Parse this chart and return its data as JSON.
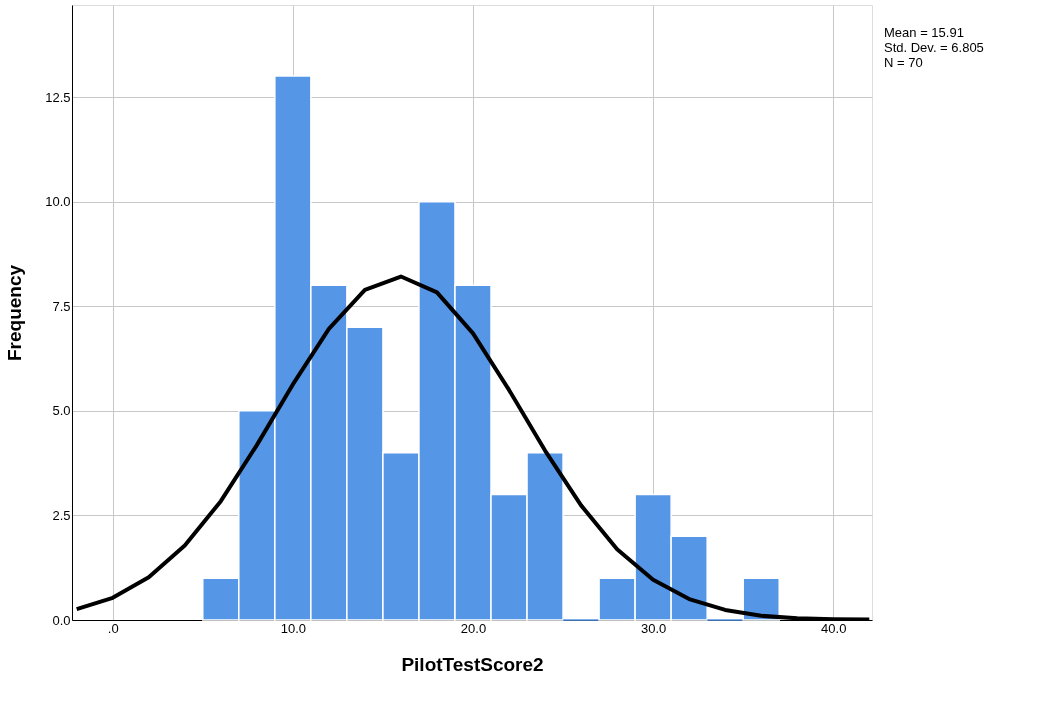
{
  "chart_data": {
    "type": "histogram",
    "xlabel": "PilotTestScore2",
    "ylabel": "Frequency",
    "bins": [
      5,
      7,
      9,
      11,
      13,
      15,
      17,
      19,
      21,
      23,
      25,
      27,
      29,
      31,
      33,
      35,
      37
    ],
    "values": [
      1,
      5,
      13,
      8,
      7,
      4,
      10,
      8,
      3,
      4,
      0,
      1,
      3,
      2,
      0,
      1
    ],
    "color": "#5596e6",
    "series": [
      {
        "type": "line",
        "color": "#000000",
        "x": [
          -2,
          0,
          2,
          4,
          6,
          8,
          10,
          12,
          14,
          16,
          18,
          20,
          22,
          24,
          26,
          28,
          30,
          32,
          34,
          36,
          38,
          40,
          42
        ],
        "values": [
          0.26,
          0.53,
          1.02,
          1.78,
          2.84,
          4.18,
          5.63,
          6.96,
          7.89,
          8.21,
          7.83,
          6.85,
          5.5,
          4.05,
          2.74,
          1.69,
          0.96,
          0.5,
          0.24,
          0.1,
          0.04,
          0.02,
          0.01
        ]
      }
    ],
    "xlim": [
      -2.26,
      42.15
    ],
    "ylim": [
      0,
      14.7
    ],
    "xticks": [
      {
        "value": 0,
        "label": ".0"
      },
      {
        "value": 10,
        "label": "10.0"
      },
      {
        "value": 20,
        "label": "20.0"
      },
      {
        "value": 30,
        "label": "30.0"
      },
      {
        "value": 40,
        "label": "40.0"
      }
    ],
    "yticks": [
      {
        "value": 0,
        "label": "0.0"
      },
      {
        "value": 2.5,
        "label": "2.5"
      },
      {
        "value": 5,
        "label": "5.0"
      },
      {
        "value": 7.5,
        "label": "7.5"
      },
      {
        "value": 10,
        "label": "10.0"
      },
      {
        "value": 12.5,
        "label": "12.5"
      }
    ],
    "grid": true,
    "annotations": [
      "Mean = 15.91",
      "Std. Dev. = 6.805",
      "N = 70"
    ]
  }
}
